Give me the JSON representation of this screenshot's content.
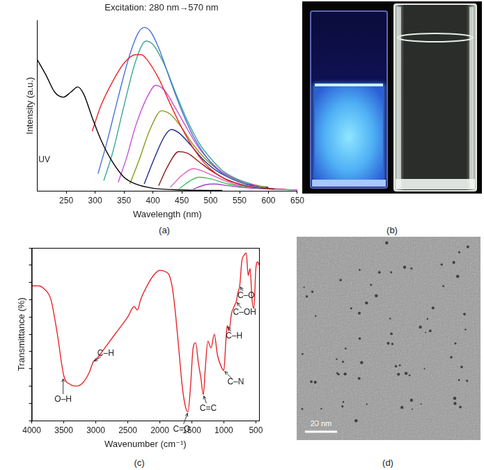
{
  "chart_data": [
    {
      "type": "line",
      "title": "Excitation: 280 nm→570 nm",
      "x_label": "Wavelength (nm)",
      "y_label": "Intensity (a.u.)",
      "xlim": [
        200,
        650
      ],
      "xticks": [
        250,
        300,
        350,
        400,
        450,
        500,
        550,
        600,
        650
      ],
      "ylim": [
        0,
        100
      ],
      "grid": false,
      "tick_labels": "x",
      "annotations": [
        {
          "text": "UV",
          "x": 212,
          "y": 18
        }
      ],
      "series": [
        {
          "color": "#000000",
          "x": [
            200,
            215,
            230,
            245,
            258,
            270,
            280,
            295,
            310,
            330,
            350,
            370,
            400,
            450,
            520
          ],
          "values": [
            77,
            68,
            58,
            55,
            58,
            61,
            57,
            43,
            30,
            17,
            8,
            4,
            1.5,
            0.5,
            0.2
          ]
        },
        {
          "color": "#e8262a",
          "x": [
            295,
            310,
            330,
            350,
            370,
            380,
            390,
            410,
            430,
            450,
            470,
            490,
            510,
            530,
            550
          ],
          "values": [
            35,
            50,
            64,
            75,
            80,
            80,
            77,
            66,
            51,
            37,
            25,
            16,
            10,
            6,
            4
          ]
        },
        {
          "color": "#4a72d6",
          "x": [
            305,
            320,
            340,
            360,
            375,
            385,
            395,
            410,
            430,
            450,
            470,
            490,
            510,
            530,
            560
          ],
          "values": [
            10,
            28,
            55,
            80,
            93,
            96,
            94,
            84,
            65,
            47,
            32,
            21,
            13,
            8,
            4
          ]
        },
        {
          "color": "#3aa890",
          "x": [
            315,
            330,
            350,
            370,
            388,
            400,
            420,
            440,
            460,
            480,
            500,
            520,
            545,
            570
          ],
          "values": [
            6,
            22,
            50,
            76,
            88,
            86,
            74,
            57,
            41,
            28,
            19,
            12,
            7,
            4
          ]
        },
        {
          "color": "#c84fd8",
          "x": [
            340,
            355,
            370,
            390,
            405,
            420,
            440,
            460,
            480,
            500,
            520,
            550,
            580
          ],
          "values": [
            5,
            20,
            38,
            55,
            62,
            59,
            48,
            36,
            25,
            17,
            11,
            6,
            3
          ]
        },
        {
          "color": "#8a9a1a",
          "x": [
            360,
            375,
            395,
            415,
            430,
            450,
            470,
            490,
            510,
            540,
            570,
            595
          ],
          "values": [
            4,
            17,
            36,
            47,
            45,
            37,
            27,
            19,
            13,
            7,
            4,
            2
          ]
        },
        {
          "color": "#1f2d8a",
          "x": [
            385,
            400,
            420,
            432,
            445,
            465,
            485,
            505,
            530,
            560,
            600
          ],
          "values": [
            4,
            17,
            32,
            36,
            34,
            27,
            19,
            13,
            8,
            4,
            2
          ]
        },
        {
          "color": "#8b1a1a",
          "x": [
            410,
            425,
            445,
            460,
            480,
            500,
            525,
            560,
            610
          ],
          "values": [
            3,
            14,
            23,
            22,
            17,
            12,
            7,
            3,
            1
          ]
        },
        {
          "color": "#e060c0",
          "x": [
            430,
            450,
            470,
            490,
            510,
            540,
            580,
            630
          ],
          "values": [
            2,
            9,
            13,
            11,
            8,
            4,
            2,
            1
          ]
        },
        {
          "color": "#40c060",
          "x": [
            445,
            465,
            480,
            500,
            530,
            570,
            640
          ],
          "values": [
            1,
            6,
            8,
            7,
            4,
            2,
            0.5
          ]
        },
        {
          "color": "#a040c0",
          "x": [
            470,
            490,
            505,
            530,
            570,
            650
          ],
          "values": [
            1,
            3.5,
            4,
            3,
            1.5,
            0.5
          ]
        }
      ]
    },
    {
      "type": "line",
      "x_label": "Wavenumber (cm⁻¹)",
      "y_label": "Transmittance (%)",
      "xlim": [
        4000,
        450
      ],
      "xticks": [
        4000,
        3500,
        3000,
        2500,
        2000,
        1500,
        1000,
        500
      ],
      "ylim": [
        0,
        100
      ],
      "yticks": [
        0,
        10,
        20,
        30,
        40,
        50,
        60,
        70,
        80,
        90,
        100
      ],
      "grid": false,
      "tick_labels": "x",
      "annotations": [
        {
          "text": "O–H",
          "x": 3510,
          "y": 25
        },
        {
          "text": "C–H",
          "x": 3040,
          "y": 34
        },
        {
          "text": "C=O",
          "x": 1560,
          "y": 5
        },
        {
          "text": "C=C",
          "x": 1320,
          "y": 15
        },
        {
          "text": "C–N",
          "x": 1000,
          "y": 29
        },
        {
          "text": "C–H",
          "x": 948,
          "y": 55
        },
        {
          "text": "C–OH",
          "x": 806,
          "y": 69
        },
        {
          "text": "C–O",
          "x": 752,
          "y": 78
        }
      ],
      "series": [
        {
          "color": "#e8262a",
          "x": [
            4000,
            3900,
            3800,
            3700,
            3600,
            3500,
            3400,
            3300,
            3200,
            3100,
            3040,
            2980,
            2900,
            2700,
            2500,
            2400,
            2350,
            2300,
            2200,
            2100,
            2000,
            1900,
            1850,
            1800,
            1750,
            1700,
            1650,
            1600,
            1560,
            1520,
            1480,
            1440,
            1400,
            1360,
            1320,
            1290,
            1250,
            1200,
            1150,
            1100,
            1050,
            1000,
            970,
            948,
            920,
            880,
            840,
            806,
            780,
            752,
            720,
            680,
            650,
            620,
            590,
            560,
            530,
            500,
            470,
            450
          ],
          "values": [
            78,
            78,
            76,
            70,
            50,
            26,
            21,
            20,
            22,
            28,
            34,
            36,
            40,
            50,
            60,
            66,
            64,
            70,
            78,
            84,
            87,
            86,
            84,
            76,
            60,
            40,
            20,
            8,
            5,
            20,
            42,
            45,
            34,
            25,
            15,
            30,
            46,
            42,
            50,
            38,
            32,
            29,
            45,
            55,
            52,
            62,
            66,
            69,
            74,
            78,
            92,
            96,
            97,
            84,
            88,
            70,
            65,
            88,
            92,
            90
          ]
        }
      ]
    }
  ],
  "panel_labels": [
    "(a)",
    "(b)",
    "(c)",
    "(d)"
  ],
  "scale_bar": "20 nm"
}
